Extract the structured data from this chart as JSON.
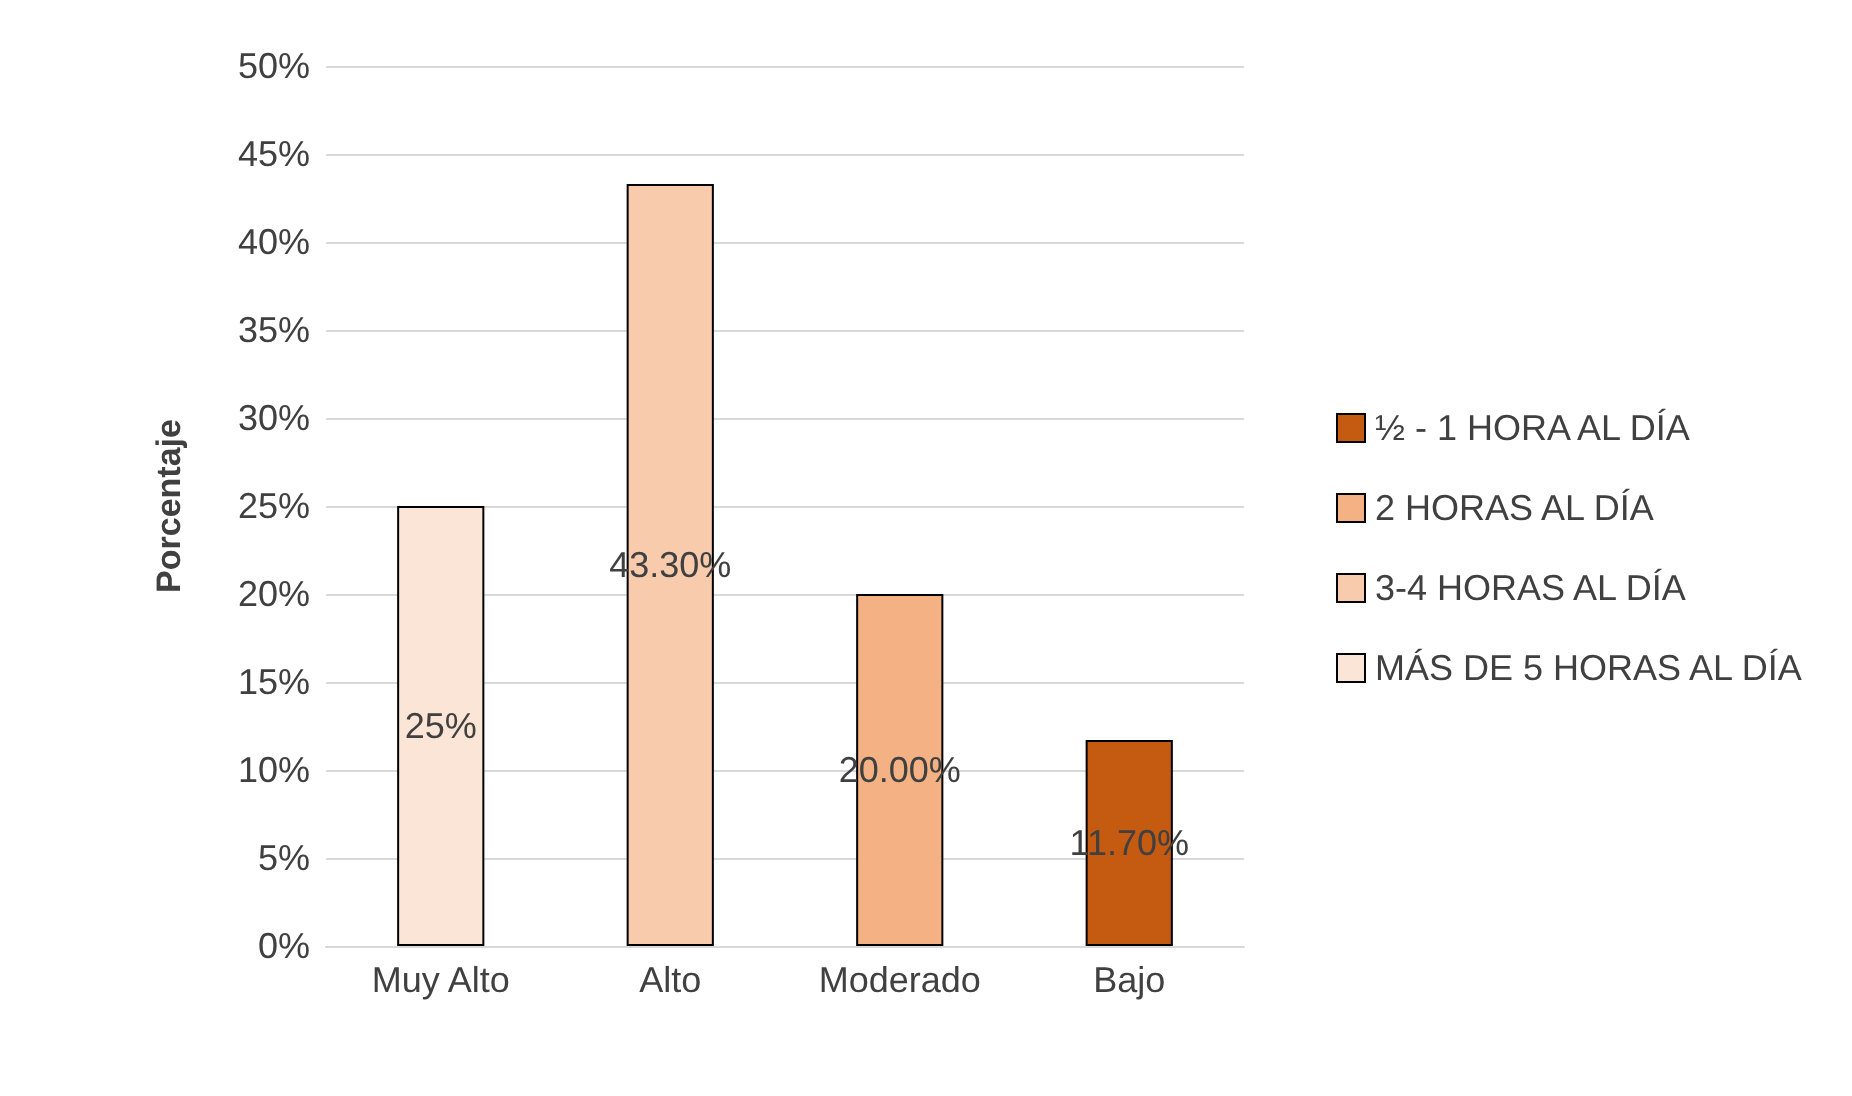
{
  "chart_data": {
    "type": "bar",
    "ylabel": "Porcentaje",
    "categories": [
      "Muy Alto",
      "Alto",
      "Moderado",
      "Bajo"
    ],
    "stacked": true,
    "series": [
      {
        "name": "½ - 1 HORA AL DÍA",
        "color": "#c55a11",
        "values": [
          null,
          null,
          null,
          11.7
        ],
        "value_labels": [
          null,
          null,
          null,
          "11.70%"
        ]
      },
      {
        "name": "2 HORAS AL DÍA",
        "color": "#f4b183",
        "values": [
          null,
          null,
          20,
          null
        ],
        "value_labels": [
          null,
          null,
          "20.00%",
          null
        ]
      },
      {
        "name": "3-4 HORAS AL DÍA",
        "color": "#f8cbad",
        "values": [
          null,
          43.3,
          null,
          null
        ],
        "value_labels": [
          null,
          "43.30%",
          null,
          null
        ]
      },
      {
        "name": "MÁS DE 5 HORAS AL DÍA",
        "color": "#fbe5d6",
        "values": [
          25,
          null,
          null,
          null
        ],
        "value_labels": [
          "25%",
          null,
          null,
          null
        ]
      }
    ],
    "ylim": [
      0,
      50
    ],
    "yticks": [
      {
        "value": 0,
        "label": "0%"
      },
      {
        "value": 5,
        "label": "5%"
      },
      {
        "value": 10,
        "label": "10%"
      },
      {
        "value": 15,
        "label": "15%"
      },
      {
        "value": 20,
        "label": "20%"
      },
      {
        "value": 25,
        "label": "25%"
      },
      {
        "value": 30,
        "label": "30%"
      },
      {
        "value": 35,
        "label": "35%"
      },
      {
        "value": 40,
        "label": "40%"
      },
      {
        "value": 45,
        "label": "45%"
      },
      {
        "value": 50,
        "label": "50%"
      }
    ],
    "grid": "y",
    "legend": "right"
  }
}
